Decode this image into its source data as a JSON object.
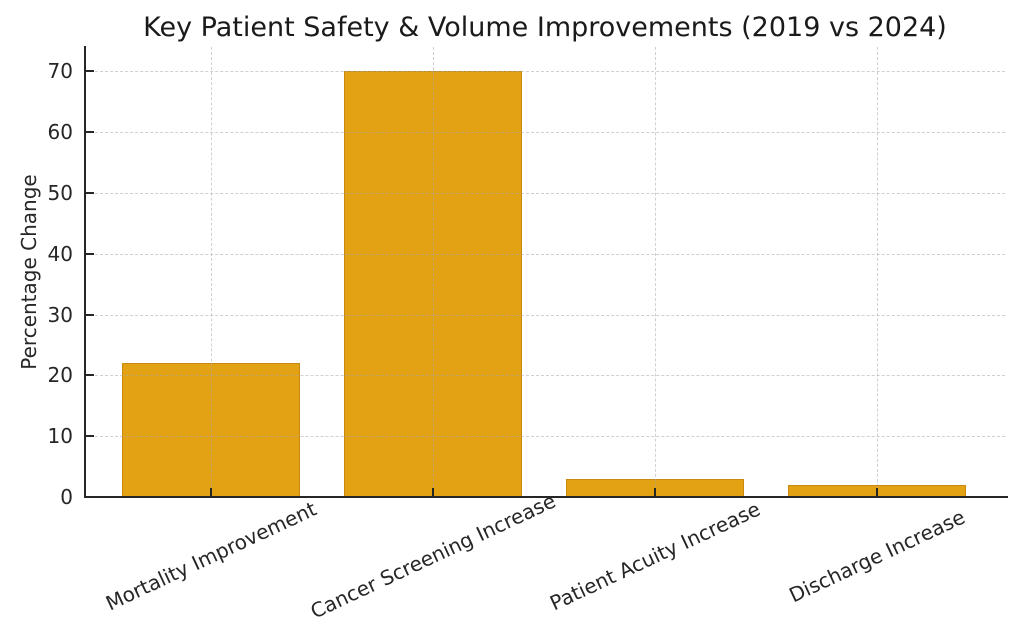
{
  "chart_data": {
    "type": "bar",
    "title": "Key Patient Safety & Volume Improvements (2019 vs 2024)",
    "xlabel": "",
    "ylabel": "Percentage Change",
    "categories": [
      "Mortality Improvement",
      "Cancer Screening Increase",
      "Patient Acuity Increase",
      "Discharge Increase"
    ],
    "values": [
      22,
      70,
      3,
      2
    ],
    "y_ticks": [
      0,
      10,
      20,
      30,
      40,
      50,
      60,
      70
    ],
    "ylim": [
      0,
      74
    ],
    "x_tick_rotation_deg": 25,
    "grid": "dashed horizontal and vertical, light gray, drawn over bars",
    "legend": "none",
    "bar_color": "#E3A214",
    "bar_edge_color": "#C9880E",
    "axis_color": "#262626",
    "grid_color": "#aaaaaa",
    "background_color": "#ffffff"
  }
}
